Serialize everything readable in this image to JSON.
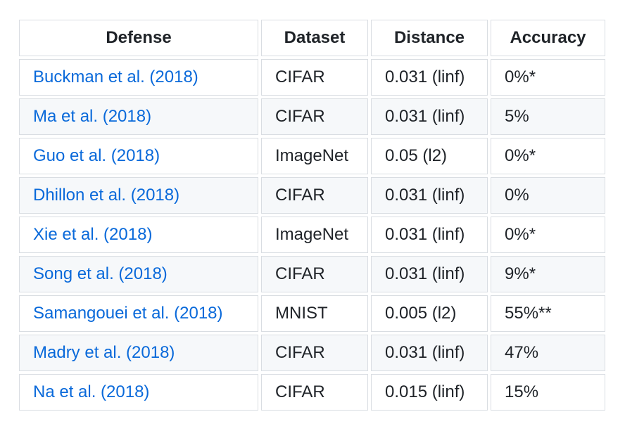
{
  "colors": {
    "link_blue": "#0969da",
    "text": "#1f2328",
    "cell_border": "#d9dde2",
    "row_alt_background": "#f6f8fa",
    "page_background": "#ffffff"
  },
  "table": {
    "columns": [
      "Defense",
      "Dataset",
      "Distance",
      "Accuracy"
    ],
    "rows": [
      {
        "defense": "Buckman et al. (2018)",
        "dataset": "CIFAR",
        "distance": "0.031 (linf)",
        "accuracy": "0%*"
      },
      {
        "defense": "Ma et al. (2018)",
        "dataset": "CIFAR",
        "distance": "0.031 (linf)",
        "accuracy": "5%"
      },
      {
        "defense": "Guo et al. (2018)",
        "dataset": "ImageNet",
        "distance": "0.05 (l2)",
        "accuracy": "0%*"
      },
      {
        "defense": "Dhillon et al. (2018)",
        "dataset": "CIFAR",
        "distance": "0.031 (linf)",
        "accuracy": "0%"
      },
      {
        "defense": "Xie et al. (2018)",
        "dataset": "ImageNet",
        "distance": "0.031 (linf)",
        "accuracy": "0%*"
      },
      {
        "defense": "Song et al. (2018)",
        "dataset": "CIFAR",
        "distance": "0.031 (linf)",
        "accuracy": "9%*"
      },
      {
        "defense": "Samangouei et al. (2018)",
        "dataset": "MNIST",
        "distance": "0.005 (l2)",
        "accuracy": "55%**"
      },
      {
        "defense": "Madry et al. (2018)",
        "dataset": "CIFAR",
        "distance": "0.031 (linf)",
        "accuracy": "47%"
      },
      {
        "defense": "Na et al. (2018)",
        "dataset": "CIFAR",
        "distance": "0.015 (linf)",
        "accuracy": "15%"
      }
    ]
  }
}
